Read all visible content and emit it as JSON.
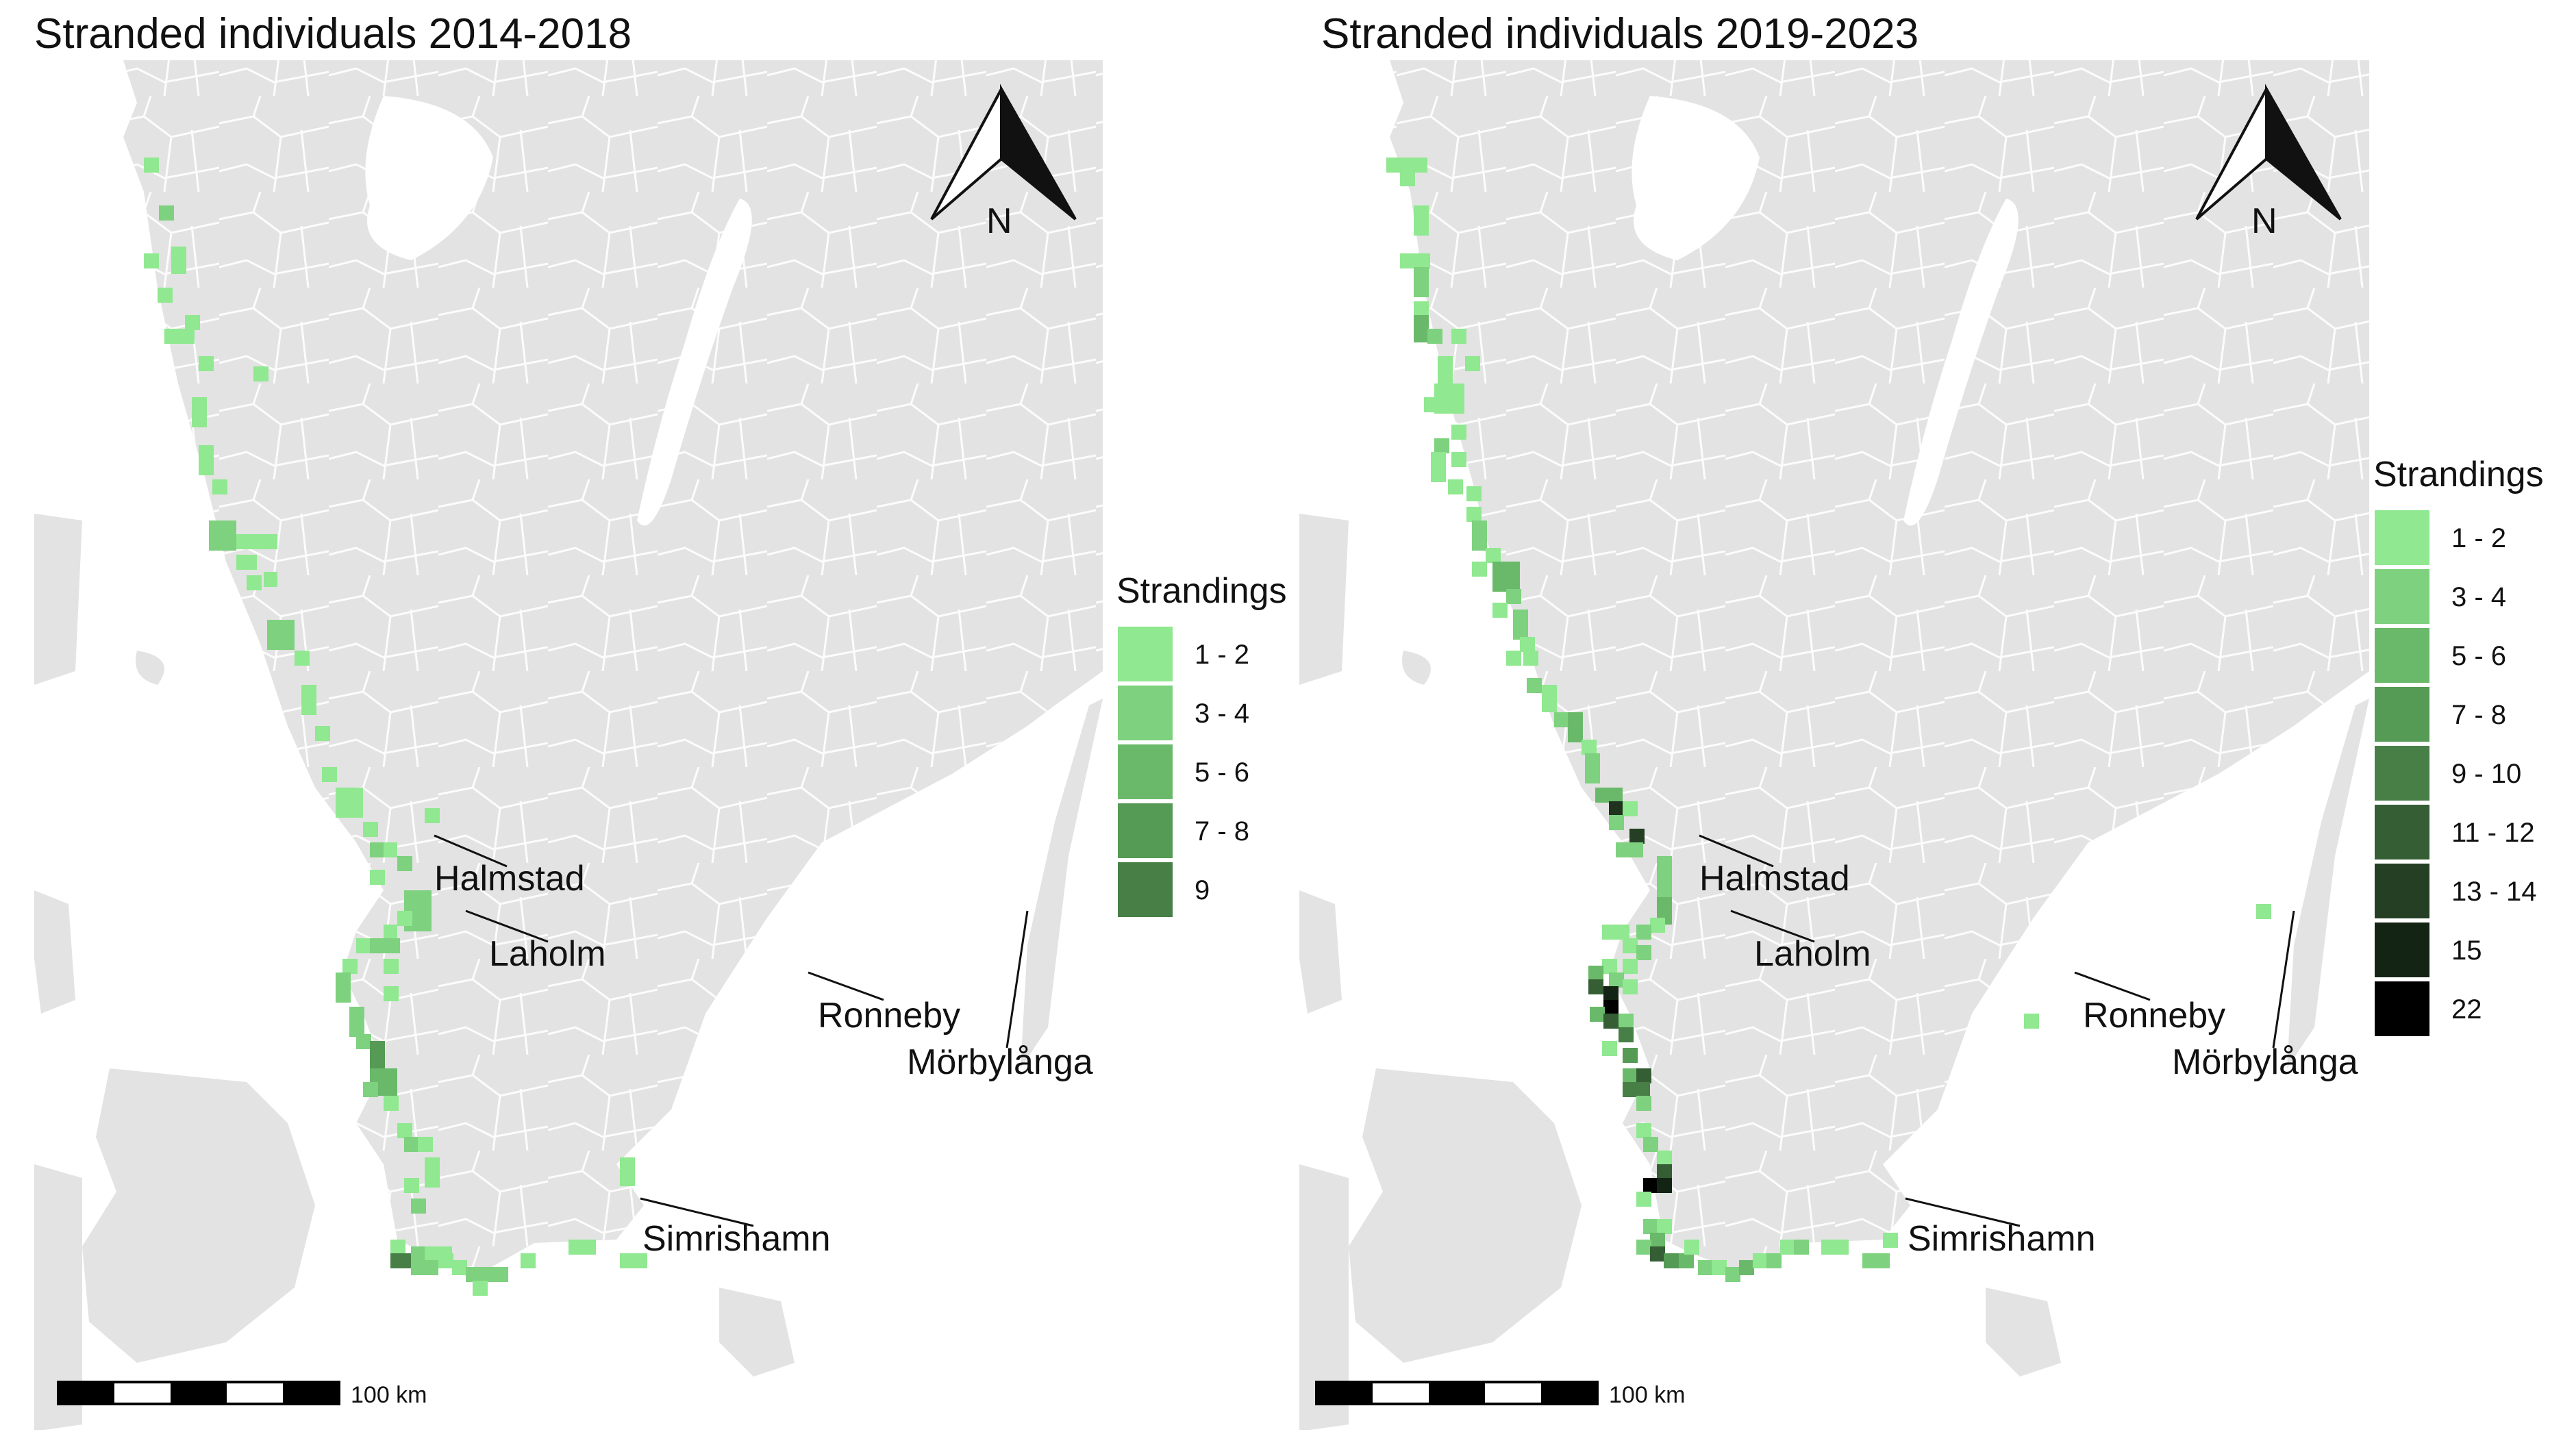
{
  "panels": [
    {
      "title": "Stranded individuals 2014-2018",
      "legend": {
        "title": "Strandings",
        "entries": [
          {
            "label": "1 - 2",
            "color": "#90E890"
          },
          {
            "label": "3 - 4",
            "color": "#7ED17E"
          },
          {
            "label": "5 - 6",
            "color": "#6AB96A"
          },
          {
            "label": "7 - 8",
            "color": "#559A55"
          },
          {
            "label": "9",
            "color": "#477F47"
          }
        ]
      },
      "places": {
        "halmstad": "Halmstad",
        "laholm": "Laholm",
        "ronneby": "Ronneby",
        "morbylanga": "Mörbylånga",
        "simrishamn": "Simrishamn"
      },
      "north_label": "N",
      "scale_label": "100 km"
    },
    {
      "title": "Stranded individuals 2019-2023",
      "legend": {
        "title": "Strandings",
        "entries": [
          {
            "label": "1 - 2",
            "color": "#90E890"
          },
          {
            "label": "3 - 4",
            "color": "#7ED17E"
          },
          {
            "label": "5 - 6",
            "color": "#6AB96A"
          },
          {
            "label": "7 - 8",
            "color": "#559A55"
          },
          {
            "label": "9 - 10",
            "color": "#477F47"
          },
          {
            "label": "11 - 12",
            "color": "#355E35"
          },
          {
            "label": "13 - 14",
            "color": "#243F24"
          },
          {
            "label": "15",
            "color": "#142414"
          },
          {
            "label": "22",
            "color": "#000000"
          }
        ]
      },
      "places": {
        "halmstad": "Halmstad",
        "laholm": "Laholm",
        "ronneby": "Ronneby",
        "morbylanga": "Mörbylånga",
        "simrishamn": "Simrishamn"
      },
      "north_label": "N",
      "scale_label": "100 km"
    }
  ],
  "colors": {
    "land": "#E3E3E3",
    "lake": "#FFFFFF",
    "borders": "#FFFFFF"
  }
}
